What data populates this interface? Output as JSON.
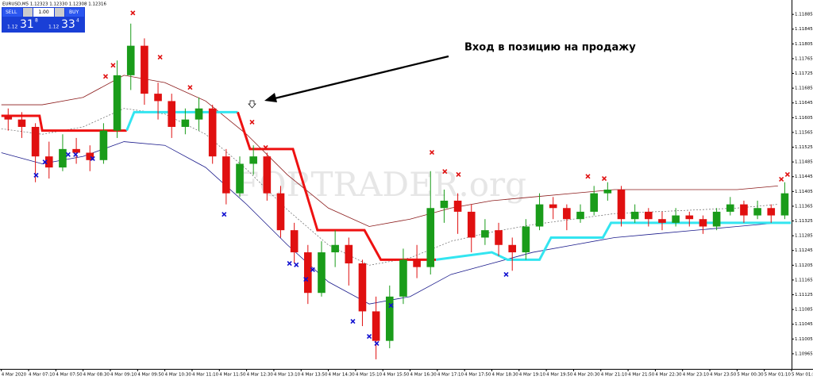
{
  "chart_data": {
    "type": "candlestick",
    "title": "EURUSD,M5  1.12323 1.12330 1.12308 1.12316",
    "annotation": "Вход в позицию на продажу",
    "watermark": "FORTRADER.org",
    "trade_panel": {
      "sell": "SELL",
      "buy": "BUY",
      "lot": "1.00",
      "bid_prefix": "1.12",
      "bid_big": "31",
      "bid_sup": "8",
      "ask_prefix": "1.12",
      "ask_big": "33",
      "ask_sup": "4"
    },
    "up_color": "#1a9c1a",
    "down_color": "#e01010",
    "xlim": [
      -2,
      1160
    ],
    "ylim": [
      1.10924,
      1.11924
    ],
    "xticks": [
      {
        "value": 0,
        "label": "4 Mar 2020"
      },
      {
        "value": 40,
        "label": "4 Mar 07:10"
      },
      {
        "value": 80,
        "label": "4 Mar 07:50"
      },
      {
        "value": 120,
        "label": "4 Mar 08:30"
      },
      {
        "value": 160,
        "label": "4 Mar 09:10"
      },
      {
        "value": 200,
        "label": "4 Mar 09:50"
      },
      {
        "value": 240,
        "label": "4 Mar 10:30"
      },
      {
        "value": 280,
        "label": "4 Mar 11:10"
      },
      {
        "value": 320,
        "label": "4 Mar 11:50"
      },
      {
        "value": 360,
        "label": "4 Mar 12:30"
      },
      {
        "value": 400,
        "label": "4 Mar 13:10"
      },
      {
        "value": 440,
        "label": "4 Mar 13:50"
      },
      {
        "value": 480,
        "label": "4 Mar 14:30"
      },
      {
        "value": 520,
        "label": "4 Mar 15:10"
      },
      {
        "value": 560,
        "label": "4 Mar 15:50"
      },
      {
        "value": 600,
        "label": "4 Mar 16:30"
      },
      {
        "value": 640,
        "label": "4 Mar 17:10"
      },
      {
        "value": 680,
        "label": "4 Mar 17:50"
      },
      {
        "value": 720,
        "label": "4 Mar 18:30"
      },
      {
        "value": 760,
        "label": "4 Mar 19:10"
      },
      {
        "value": 800,
        "label": "4 Mar 19:50"
      },
      {
        "value": 840,
        "label": "4 Mar 20:30"
      },
      {
        "value": 880,
        "label": "4 Mar 21:10"
      },
      {
        "value": 920,
        "label": "4 Mar 21:50"
      },
      {
        "value": 960,
        "label": "4 Mar 22:30"
      },
      {
        "value": 1000,
        "label": "4 Mar 23:10"
      },
      {
        "value": 1040,
        "label": "4 Mar 23:50"
      },
      {
        "value": 1080,
        "label": "5 Mar 00:30"
      },
      {
        "value": 1120,
        "label": "5 Mar 01:10"
      },
      {
        "value": 1160,
        "label": "5 Mar 01:50"
      }
    ],
    "yticks": [
      1.11885,
      1.11845,
      1.11805,
      1.11765,
      1.11725,
      1.11685,
      1.11645,
      1.11605,
      1.11565,
      1.11525,
      1.11485,
      1.11445,
      1.11405,
      1.11365,
      1.11325,
      1.11285,
      1.11245,
      1.11205,
      1.11165,
      1.11125,
      1.11085,
      1.11045,
      1.11005,
      1.10965
    ],
    "x": [
      10,
      30,
      50,
      70,
      90,
      110,
      130,
      150,
      170,
      190,
      210,
      230,
      250,
      270,
      290,
      310,
      330,
      350,
      370,
      390,
      410,
      430,
      450,
      470,
      490,
      510,
      530,
      550,
      570,
      590,
      610,
      630,
      650,
      670,
      690,
      710,
      730,
      750,
      770,
      790,
      810,
      830,
      850,
      870,
      890,
      910,
      930,
      950,
      970,
      990,
      1010,
      1030,
      1050,
      1070,
      1090,
      1110,
      1130,
      1150
    ],
    "open": [
      1.1161,
      1.116,
      1.1158,
      1.115,
      1.1147,
      1.1152,
      1.1151,
      1.1149,
      1.1157,
      1.1172,
      1.118,
      1.1167,
      1.1165,
      1.1158,
      1.116,
      1.1163,
      1.115,
      1.114,
      1.1148,
      1.115,
      1.114,
      1.113,
      1.1124,
      1.1113,
      1.1124,
      1.1126,
      1.1121,
      1.1108,
      1.11,
      1.1112,
      1.1122,
      1.112,
      1.1136,
      1.1138,
      1.1135,
      1.1128,
      1.113,
      1.1126,
      1.1124,
      1.1131,
      1.1137,
      1.1136,
      1.1133,
      1.1135,
      1.114,
      1.1141,
      1.1133,
      1.1135,
      1.1133,
      1.1132,
      1.1134,
      1.1133,
      1.1131,
      1.1135,
      1.1137,
      1.1134,
      1.1136,
      1.1134
    ],
    "high": [
      1.1163,
      1.1162,
      1.1159,
      1.1154,
      1.1156,
      1.1155,
      1.1153,
      1.1159,
      1.1176,
      1.1186,
      1.1182,
      1.117,
      1.1167,
      1.1163,
      1.1166,
      1.1164,
      1.1152,
      1.115,
      1.1153,
      1.1151,
      1.1142,
      1.1132,
      1.1126,
      1.1127,
      1.113,
      1.1128,
      1.1122,
      1.1112,
      1.1115,
      1.1125,
      1.1126,
      1.1146,
      1.1141,
      1.114,
      1.1137,
      1.1133,
      1.1132,
      1.1128,
      1.1133,
      1.114,
      1.1139,
      1.1137,
      1.1137,
      1.1142,
      1.1143,
      1.1142,
      1.1137,
      1.1136,
      1.1135,
      1.1136,
      1.1135,
      1.1134,
      1.1136,
      1.1139,
      1.1138,
      1.1138,
      1.1137,
      1.1143
    ],
    "low": [
      1.1157,
      1.1155,
      1.1143,
      1.1144,
      1.1146,
      1.1148,
      1.1146,
      1.1148,
      1.1155,
      1.1168,
      1.1164,
      1.116,
      1.1155,
      1.1156,
      1.1157,
      1.1148,
      1.1137,
      1.1139,
      1.1145,
      1.1138,
      1.1128,
      1.1121,
      1.111,
      1.1112,
      1.112,
      1.1115,
      1.1104,
      1.1095,
      1.1098,
      1.111,
      1.1117,
      1.1118,
      1.1132,
      1.1129,
      1.1124,
      1.1126,
      1.1123,
      1.1119,
      1.1122,
      1.113,
      1.1133,
      1.113,
      1.1132,
      1.1134,
      1.1138,
      1.1131,
      1.1132,
      1.1131,
      1.113,
      1.1131,
      1.1131,
      1.1129,
      1.113,
      1.1134,
      1.1132,
      1.1133,
      1.1132,
      1.1133
    ],
    "close": [
      1.116,
      1.1158,
      1.115,
      1.1147,
      1.1152,
      1.1151,
      1.1149,
      1.1157,
      1.1172,
      1.118,
      1.1167,
      1.1165,
      1.1158,
      1.116,
      1.1163,
      1.115,
      1.114,
      1.1148,
      1.115,
      1.114,
      1.113,
      1.1124,
      1.1113,
      1.1124,
      1.1126,
      1.1121,
      1.1108,
      1.11,
      1.1112,
      1.1122,
      1.112,
      1.1136,
      1.1138,
      1.1135,
      1.1128,
      1.113,
      1.1126,
      1.1124,
      1.1131,
      1.1137,
      1.1136,
      1.1133,
      1.1135,
      1.114,
      1.1141,
      1.1133,
      1.1135,
      1.1133,
      1.1132,
      1.1134,
      1.1133,
      1.1131,
      1.1135,
      1.1137,
      1.1134,
      1.1136,
      1.1134,
      1.114
    ],
    "lines": [
      {
        "color": "#8b1a1a",
        "width": 0.8,
        "dash": false,
        "x": [
          0,
          60,
          120,
          180,
          240,
          300,
          360,
          420,
          480,
          540,
          600,
          660,
          720,
          780,
          840,
          900,
          960,
          1020,
          1080,
          1140
        ],
        "values": [
          1.1164,
          1.1164,
          1.1166,
          1.1172,
          1.117,
          1.1165,
          1.1156,
          1.1145,
          1.1136,
          1.1131,
          1.1133,
          1.1136,
          1.1138,
          1.1139,
          1.114,
          1.1141,
          1.1141,
          1.1141,
          1.1141,
          1.1142
        ]
      },
      {
        "color": "#1a1a8b",
        "width": 0.8,
        "dash": false,
        "x": [
          0,
          60,
          120,
          180,
          240,
          300,
          360,
          420,
          480,
          540,
          600,
          660,
          720,
          780,
          840,
          900,
          960,
          1020,
          1080,
          1140
        ],
        "values": [
          1.1151,
          1.1148,
          1.115,
          1.1154,
          1.1153,
          1.1147,
          1.1137,
          1.1126,
          1.1116,
          1.111,
          1.1112,
          1.1118,
          1.1121,
          1.1124,
          1.1126,
          1.1128,
          1.1129,
          1.113,
          1.1131,
          1.1132
        ]
      },
      {
        "color": "#666666",
        "width": 0.7,
        "dash": true,
        "x": [
          0,
          60,
          120,
          180,
          240,
          300,
          360,
          420,
          480,
          540,
          600,
          660,
          720,
          780,
          840,
          900,
          960,
          1020,
          1080,
          1140
        ],
        "values": [
          1.11575,
          1.1156,
          1.1158,
          1.1163,
          1.11615,
          1.1156,
          1.11465,
          1.11355,
          1.1126,
          1.11205,
          1.11225,
          1.1127,
          1.11295,
          1.11315,
          1.1133,
          1.11345,
          1.1135,
          1.11355,
          1.1136,
          1.1137
        ]
      },
      {
        "color": "#ee1111",
        "width": 3,
        "dash": false,
        "x": [
          0,
          56,
          60,
          184
        ],
        "values": [
          1.1161,
          1.1161,
          1.1157,
          1.1157
        ]
      },
      {
        "color": "#33e5f0",
        "width": 3,
        "dash": false,
        "x": [
          184,
          195,
          347
        ],
        "values": [
          1.1157,
          1.1162,
          1.1162
        ]
      },
      {
        "color": "#ee1111",
        "width": 3,
        "dash": false,
        "x": [
          347,
          365,
          428,
          464,
          533,
          557,
          638
        ],
        "values": [
          1.1162,
          1.1152,
          1.1152,
          1.113,
          1.113,
          1.1122,
          1.1122
        ]
      },
      {
        "color": "#33e5f0",
        "width": 3,
        "dash": false,
        "x": [
          638,
          720,
          743,
          790,
          807,
          883,
          895,
          1159
        ],
        "values": [
          1.1122,
          1.1124,
          1.1122,
          1.1122,
          1.1128,
          1.1128,
          1.1132,
          1.1132
        ]
      }
    ],
    "markers": [
      {
        "color": "#e01010",
        "x": [
          153,
          164,
          193,
          233,
          277,
          368,
          388,
          632,
          651,
          671,
          861,
          885,
          1145,
          1154
        ],
        "values": [
          1.11717,
          1.11747,
          1.11889,
          1.11769,
          1.11687,
          1.11593,
          1.11524,
          1.11511,
          1.11459,
          1.11451,
          1.11446,
          1.1144,
          1.11438,
          1.11451
        ]
      },
      {
        "color": "#1010d0",
        "x": [
          51,
          64,
          98,
          109,
          134,
          327,
          423,
          433,
          447,
          457,
          516,
          540,
          551,
          572,
          741
        ],
        "values": [
          1.11449,
          1.11485,
          1.11505,
          1.11505,
          1.11494,
          1.11343,
          1.1121,
          1.11206,
          1.11167,
          1.11193,
          1.11053,
          1.11012,
          1.10993,
          1.11096,
          1.1118
        ]
      }
    ]
  }
}
